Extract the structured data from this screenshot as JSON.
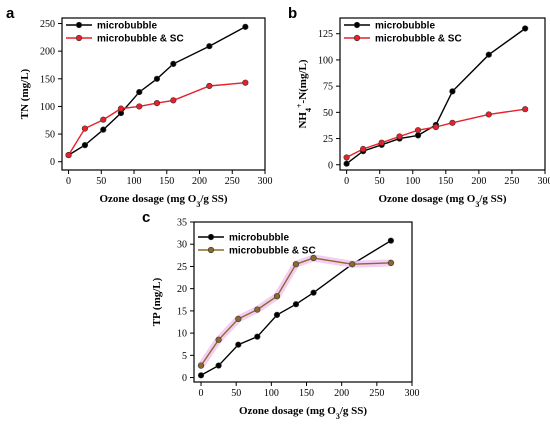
{
  "chart_data": [
    {
      "type": "line",
      "panel": "a",
      "xlabel_pre": "Ozone dosage (mg O",
      "xlabel_sub": "3",
      "xlabel_post": "/g SS)",
      "ylabel": "TN (mg/L)",
      "xlim": [
        -10,
        300
      ],
      "ylim": [
        -15,
        260
      ],
      "xticks": [
        0,
        50,
        100,
        150,
        200,
        250,
        300
      ],
      "yticks": [
        0,
        50,
        100,
        150,
        200,
        250
      ],
      "legend_position": "top-left",
      "series": [
        {
          "name": "microbubble",
          "color": "#000000",
          "x": [
            0,
            25,
            53,
            80,
            108,
            135,
            160,
            215,
            270
          ],
          "y": [
            12,
            30,
            58,
            88,
            126,
            150,
            177,
            209,
            244
          ]
        },
        {
          "name": "microbubble & SC",
          "color": "#e8202a",
          "x": [
            0,
            25,
            53,
            80,
            108,
            135,
            160,
            215,
            270
          ],
          "y": [
            12,
            60,
            76,
            96,
            100,
            106,
            111,
            137,
            143
          ]
        }
      ]
    },
    {
      "type": "line",
      "panel": "b",
      "xlabel_pre": "Ozone dosage (mg O",
      "xlabel_sub": "3",
      "xlabel_post": "/g SS)",
      "ylabel_pre": "NH",
      "ylabel_sub": "4",
      "ylabel_sup": "+",
      "ylabel_post": "-N(mg/L)",
      "xlim": [
        -10,
        300
      ],
      "ylim": [
        -5,
        140
      ],
      "xticks": [
        0,
        50,
        100,
        150,
        200,
        250,
        300
      ],
      "yticks": [
        0,
        25,
        50,
        75,
        100,
        125
      ],
      "legend_position": "top-left",
      "series": [
        {
          "name": "microbubble",
          "color": "#000000",
          "x": [
            0,
            25,
            53,
            80,
            108,
            135,
            160,
            215,
            270
          ],
          "y": [
            1,
            13,
            19,
            25,
            28,
            38,
            70,
            105,
            130
          ]
        },
        {
          "name": "microbubble & SC",
          "color": "#e8202a",
          "x": [
            0,
            25,
            53,
            80,
            108,
            135,
            160,
            215,
            270
          ],
          "y": [
            7,
            15,
            21,
            27,
            33,
            36,
            40,
            48,
            53
          ]
        }
      ]
    },
    {
      "type": "line",
      "panel": "c",
      "xlabel_pre": "Ozone dosage (mg O",
      "xlabel_sub": "3",
      "xlabel_post": "/g SS)",
      "ylabel": "TP (mg/L)",
      "xlim": [
        -10,
        300
      ],
      "ylim": [
        -1,
        35
      ],
      "xticks": [
        0,
        50,
        100,
        150,
        200,
        250,
        300
      ],
      "yticks": [
        0,
        5,
        10,
        15,
        20,
        25,
        30,
        35
      ],
      "legend_position": "top-left",
      "series": [
        {
          "name": "microbubble",
          "color": "#000000",
          "x": [
            0,
            25,
            53,
            80,
            108,
            135,
            160,
            215,
            270
          ],
          "y": [
            0.5,
            2.7,
            7.4,
            9.2,
            14.1,
            16.5,
            19.1,
            25.5,
            30.8
          ]
        },
        {
          "name": "microbubble & SC",
          "color": "#8b6a2b",
          "halo": "#f2c4f0",
          "x": [
            0,
            25,
            53,
            80,
            108,
            135,
            160,
            215,
            270
          ],
          "y": [
            2.7,
            8.5,
            13.2,
            15.3,
            18.3,
            25.5,
            26.9,
            25.5,
            25.8
          ]
        }
      ]
    }
  ]
}
